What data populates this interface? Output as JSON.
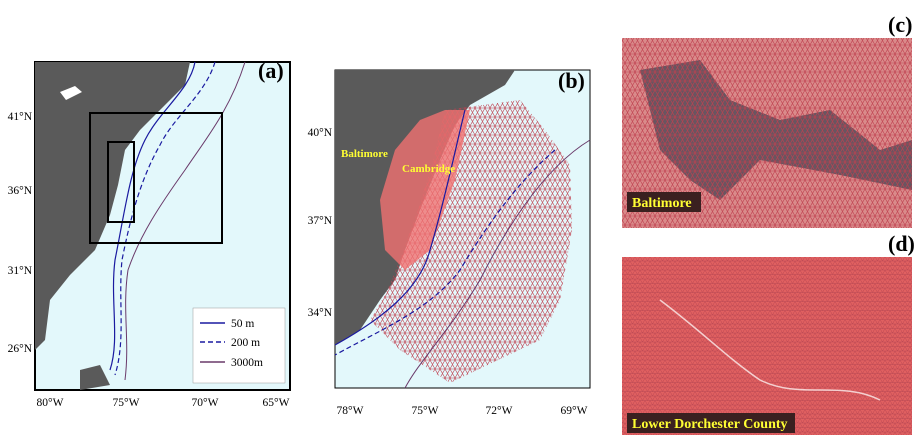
{
  "panels": [
    {
      "label": "(a)",
      "yticks": [
        "41°N",
        "36°N",
        "31°N",
        "26°N"
      ],
      "xticks": [
        "80°W",
        "75°W",
        "70°W",
        "65°W"
      ],
      "legend": [
        "50 m",
        "200 m",
        "3000m"
      ]
    },
    {
      "label": "(b)",
      "yticks": [
        "40°N",
        "37°N",
        "34°N"
      ],
      "xticks": [
        "78°W",
        "75°W",
        "72°W",
        "69°W"
      ],
      "places": [
        "Baltimore",
        "Cambridge"
      ]
    },
    {
      "label": "(c)",
      "place": "Baltimore"
    },
    {
      "label": "(d)",
      "place": "Lower Dorchester County"
    }
  ]
}
